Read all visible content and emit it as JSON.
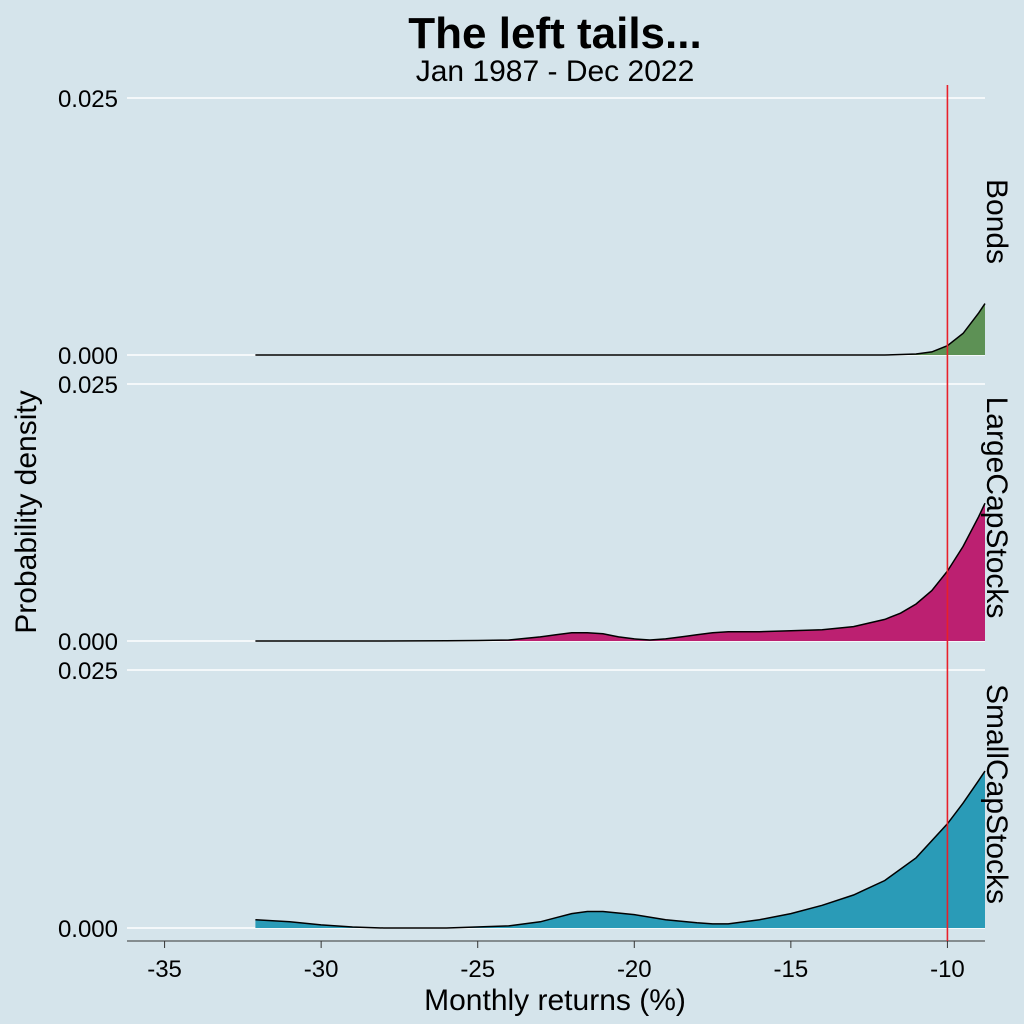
{
  "chart_data": {
    "type": "area",
    "title": "The left tails...",
    "subtitle": "Jan 1987 - Dec 2022",
    "xlabel": "Monthly returns (%)",
    "ylabel": "Probability density",
    "xlim": [
      -36.2,
      -8.8
    ],
    "x_ticks": [
      "-35",
      "-30",
      "-25",
      "-20",
      "-15",
      "-10"
    ],
    "x_tick_values": [
      -35,
      -30,
      -25,
      -20,
      -15,
      -10
    ],
    "ylim": [
      0,
      0.025
    ],
    "y_ticks": [
      "0.000",
      "0.025"
    ],
    "y_tick_values": [
      0,
      0.025
    ],
    "vline": {
      "x": -10,
      "color": "#e8202a"
    },
    "grid": true,
    "panels": [
      {
        "name": "Bonds",
        "color": "#5d9155",
        "x": [
          -32.1,
          -30,
          -28,
          -26,
          -24,
          -22,
          -20,
          -18,
          -16,
          -14,
          -12,
          -11,
          -10.5,
          -10,
          -9.5,
          -9,
          -8.8
        ],
        "density": [
          0,
          0,
          0,
          0,
          0,
          0,
          0,
          0,
          0,
          0,
          0,
          0.0001,
          0.0003,
          0.0009,
          0.0021,
          0.0041,
          0.005
        ]
      },
      {
        "name": "LargeCapStocks",
        "color": "#bc2071",
        "x": [
          -32.1,
          -30,
          -28,
          -26,
          -25,
          -24,
          -23,
          -22.5,
          -22,
          -21.5,
          -21,
          -20.5,
          -20,
          -19.5,
          -19,
          -18.5,
          -18,
          -17.5,
          -17,
          -16.5,
          -16,
          -15,
          -14,
          -13,
          -12,
          -11.5,
          -11,
          -10.5,
          -10,
          -9.5,
          -9,
          -8.8
        ],
        "density": [
          0,
          0,
          0,
          2e-05,
          5e-05,
          0.0001,
          0.0004,
          0.0006,
          0.0008,
          0.0008,
          0.0007,
          0.0004,
          0.0002,
          0.0001,
          0.0002,
          0.0004,
          0.0006,
          0.0008,
          0.0009,
          0.0009,
          0.0009,
          0.001,
          0.0011,
          0.0014,
          0.0021,
          0.0027,
          0.0036,
          0.0049,
          0.0068,
          0.0092,
          0.0121,
          0.0134
        ]
      },
      {
        "name": "SmallCapStocks",
        "color": "#2a9bb7",
        "x": [
          -32.1,
          -31,
          -30,
          -29,
          -28,
          -26,
          -24,
          -23,
          -22.5,
          -22,
          -21.5,
          -21,
          -20,
          -19,
          -18,
          -17.5,
          -17,
          -16,
          -15,
          -14,
          -13,
          -12,
          -11,
          -10,
          -9.5,
          -9,
          -8.8
        ],
        "density": [
          0.0008,
          0.0006,
          0.0003,
          0.0001,
          0,
          0,
          0.0002,
          0.0006,
          0.001,
          0.0014,
          0.0016,
          0.0016,
          0.0013,
          0.0008,
          0.0005,
          0.0004,
          0.0004,
          0.0008,
          0.0014,
          0.0022,
          0.0032,
          0.0046,
          0.0068,
          0.0101,
          0.0121,
          0.0143,
          0.0152
        ]
      }
    ]
  }
}
